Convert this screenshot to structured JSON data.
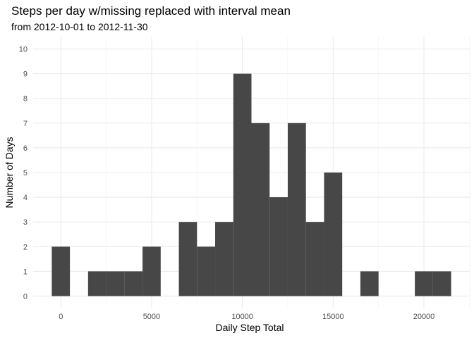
{
  "chart_data": {
    "type": "bar",
    "title": "Steps per day w/missing replaced with interval mean",
    "subtitle": "from 2012-10-01 to 2012-11-30",
    "xlabel": "Daily Step Total",
    "ylabel": "Number of Days",
    "bin_width": 1000,
    "bins": [
      {
        "center": 0,
        "count": 2
      },
      {
        "center": 1000,
        "count": 0
      },
      {
        "center": 2000,
        "count": 1
      },
      {
        "center": 3000,
        "count": 1
      },
      {
        "center": 4000,
        "count": 1
      },
      {
        "center": 5000,
        "count": 2
      },
      {
        "center": 6000,
        "count": 0
      },
      {
        "center": 7000,
        "count": 3
      },
      {
        "center": 8000,
        "count": 2
      },
      {
        "center": 9000,
        "count": 3
      },
      {
        "center": 10000,
        "count": 9
      },
      {
        "center": 11000,
        "count": 7
      },
      {
        "center": 12000,
        "count": 4
      },
      {
        "center": 13000,
        "count": 7
      },
      {
        "center": 14000,
        "count": 3
      },
      {
        "center": 15000,
        "count": 5
      },
      {
        "center": 16000,
        "count": 0
      },
      {
        "center": 17000,
        "count": 1
      },
      {
        "center": 18000,
        "count": 0
      },
      {
        "center": 19000,
        "count": 0
      },
      {
        "center": 20000,
        "count": 1
      },
      {
        "center": 21000,
        "count": 1
      }
    ],
    "xlim": [
      -1525,
      22525
    ],
    "ylim": [
      -0.5,
      10.5
    ],
    "x_ticks": [
      0,
      5000,
      10000,
      15000,
      20000
    ],
    "y_ticks": [
      0,
      1,
      2,
      3,
      4,
      5,
      6,
      7,
      8,
      9,
      10
    ],
    "grid": true,
    "legend": "none",
    "bar_color": "#474747"
  }
}
